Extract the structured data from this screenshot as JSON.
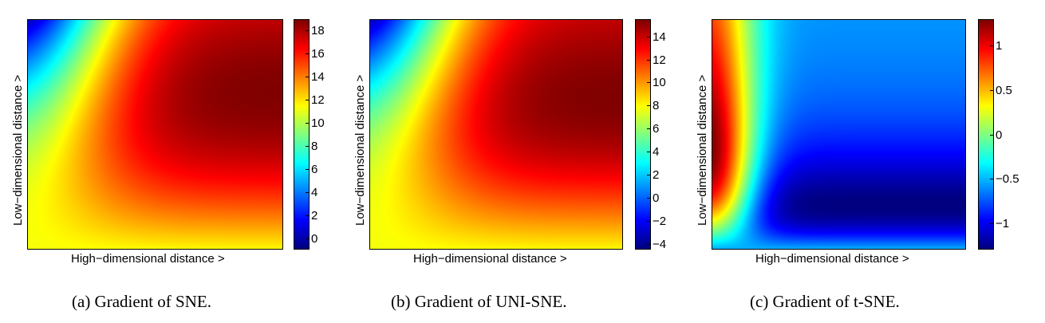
{
  "chart_data": [
    {
      "type": "heatmap",
      "title": "",
      "xlabel": "High−dimensional distance >",
      "ylabel": "Low−dimensional distance >",
      "caption": "(a)  Gradient of SNE.",
      "colormap": "jet",
      "colorbar_ticks": [
        "18",
        "16",
        "14",
        "12",
        "10",
        "8",
        "6",
        "4",
        "2",
        "0"
      ],
      "colorbar_range": [
        -1,
        19
      ],
      "grid": false
    },
    {
      "type": "heatmap",
      "title": "",
      "xlabel": "High−dimensional distance >",
      "ylabel": "Low−dimensional distance >",
      "caption": "(b)  Gradient of UNI-SNE.",
      "colormap": "jet",
      "colorbar_ticks": [
        "14",
        "12",
        "10",
        "8",
        "6",
        "4",
        "2",
        "0",
        "−2",
        "−4"
      ],
      "colorbar_range": [
        -4.5,
        15.5
      ],
      "grid": false
    },
    {
      "type": "heatmap",
      "title": "",
      "xlabel": "High−dimensional distance >",
      "ylabel": "Low−dimensional distance >",
      "caption": "(c)  Gradient of t-SNE.",
      "colormap": "jet",
      "colorbar_ticks": [
        "1",
        "0.5",
        "0",
        "−0.5",
        "−1"
      ],
      "colorbar_range": [
        -1.3,
        1.3
      ],
      "grid": false
    }
  ]
}
